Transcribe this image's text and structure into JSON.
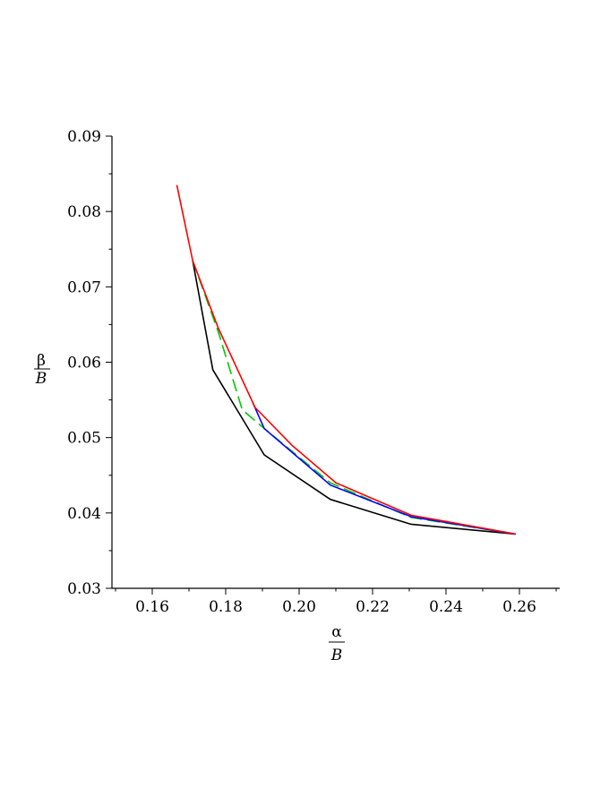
{
  "chart_data": {
    "type": "line",
    "title": "",
    "xlabel": {
      "numerator": "α",
      "denominator": "B"
    },
    "ylabel": {
      "numerator": "β",
      "denominator": "B"
    },
    "xlim": [
      0.15,
      0.27
    ],
    "ylim": [
      0.03,
      0.09
    ],
    "xticks": [
      "0.16",
      "0.18",
      "0.20",
      "0.22",
      "0.24",
      "0.26"
    ],
    "yticks": [
      "0.03",
      "0.04",
      "0.05",
      "0.06",
      "0.07",
      "0.08",
      "0.09"
    ],
    "grid": false,
    "legend": "none",
    "series": [
      {
        "color": "#000000",
        "dash": "solid",
        "points": [
          [
            0.171,
            0.0735
          ],
          [
            0.1765,
            0.059
          ],
          [
            0.1905,
            0.0477
          ],
          [
            0.2085,
            0.0418
          ],
          [
            0.2305,
            0.0385
          ],
          [
            0.259,
            0.0372
          ]
        ]
      },
      {
        "color": "#00cc00",
        "dash": "dashed",
        "points": [
          [
            0.171,
            0.0735
          ],
          [
            0.178,
            0.064
          ],
          [
            0.1845,
            0.0537
          ],
          [
            0.1905,
            0.0512
          ],
          [
            0.2085,
            0.044
          ],
          [
            0.2305,
            0.0394
          ],
          [
            0.259,
            0.0372
          ]
        ]
      },
      {
        "color": "#0000ff",
        "dash": "solid",
        "points": [
          [
            0.1875,
            0.0545
          ],
          [
            0.1905,
            0.0512
          ],
          [
            0.2085,
            0.0437
          ],
          [
            0.2305,
            0.0395
          ],
          [
            0.259,
            0.0372
          ]
        ]
      },
      {
        "color": "#ff0000",
        "dash": "solid",
        "points": [
          [
            0.1667,
            0.0835
          ],
          [
            0.171,
            0.0735
          ],
          [
            0.178,
            0.0645
          ],
          [
            0.188,
            0.054
          ],
          [
            0.198,
            0.049
          ],
          [
            0.21,
            0.044
          ],
          [
            0.2305,
            0.0397
          ],
          [
            0.259,
            0.0372
          ]
        ]
      }
    ]
  }
}
